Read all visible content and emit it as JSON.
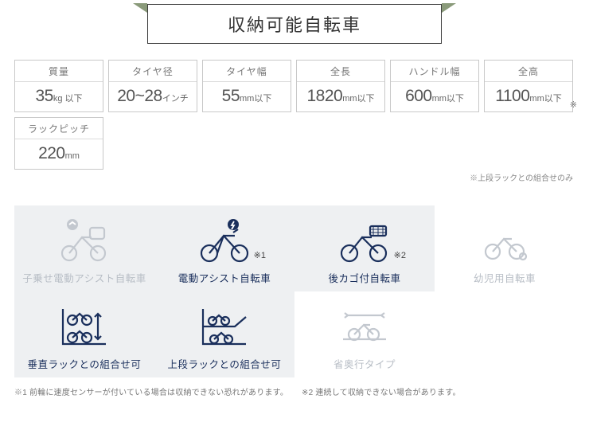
{
  "title": "収納可能自転車",
  "colors": {
    "active": "#1a2f5c",
    "inactive": "#c3c8cf",
    "border": "#c8c8c8",
    "text_muted": "#777"
  },
  "specs": [
    {
      "label": "質量",
      "num": "35",
      "unit": "kg 以下"
    },
    {
      "label": "タイヤ径",
      "num": "20~28",
      "unit": "インチ"
    },
    {
      "label": "タイヤ幅",
      "num": "55",
      "unit": "mm以下"
    },
    {
      "label": "全長",
      "num": "1820",
      "unit": "mm以下"
    },
    {
      "label": "ハンドル幅",
      "num": "600",
      "unit": "mm以下"
    },
    {
      "label": "全高",
      "num": "1100",
      "unit": "mm以下",
      "sup": "※"
    },
    {
      "label": "ラックピッチ",
      "num": "220",
      "unit": "mm"
    }
  ],
  "spec_note": "※上段ラックとの組合せのみ",
  "icons": [
    {
      "label": "子乗せ電動アシスト自転車",
      "active": false,
      "shaded": true,
      "svg": "childseat"
    },
    {
      "label": "電動アシスト自転車",
      "active": true,
      "shaded": true,
      "svg": "ebike",
      "mark": "※1"
    },
    {
      "label": "後カゴ付自転車",
      "active": true,
      "shaded": true,
      "svg": "basket",
      "mark": "※2"
    },
    {
      "label": "幼児用自転車",
      "active": false,
      "shaded": false,
      "svg": "kidbike"
    },
    {
      "label": "垂直ラックとの組合せ可",
      "active": true,
      "shaded": true,
      "svg": "vertical"
    },
    {
      "label": "上段ラックとの組合せ可",
      "active": true,
      "shaded": true,
      "svg": "upper"
    },
    {
      "label": "省奥行タイプ",
      "active": false,
      "shaded": false,
      "svg": "depth"
    }
  ],
  "footnotes": {
    "n1": "※1 前輪に速度センサーが付いている場合は収納できない恐れがあります。",
    "n2": "※2 連続して収納できない場合があります。"
  }
}
